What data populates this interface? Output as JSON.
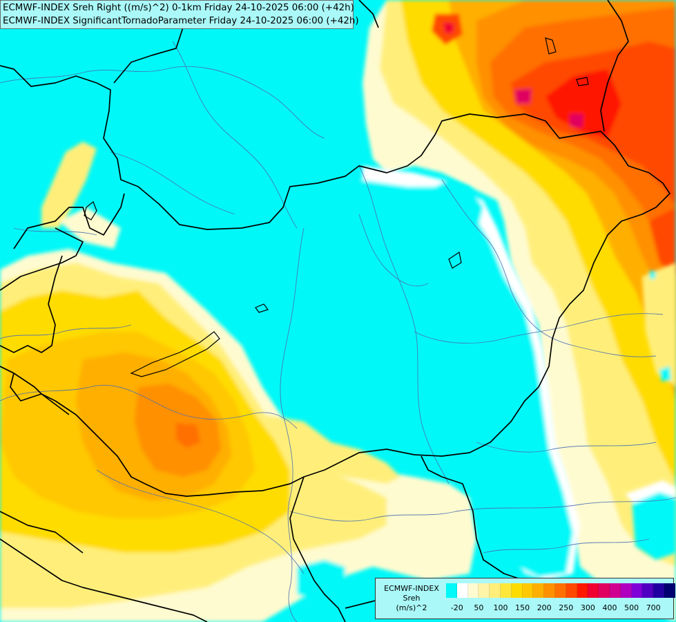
{
  "header": {
    "line1": "ECMWF-INDEX Sreh Right ((m/s)^2) 0-1km Friday 24-10-2025 06:00 (+42h)",
    "line2": "ECMWF-INDEX SignificantTornadoParameter Friday 24-10-2025 06:00 (+42h)"
  },
  "legend": {
    "title": "ECMWF-INDEX",
    "variable": "Sreh",
    "unit": "(m/s)^2",
    "colors": [
      "#00f8f8",
      "#ffffff",
      "#fffbd0",
      "#fff4a8",
      "#ffef7a",
      "#ffe83a",
      "#ffdc00",
      "#ffc800",
      "#ffaf00",
      "#ff9000",
      "#ff7000",
      "#ff4800",
      "#ff1800",
      "#f00030",
      "#e00060",
      "#d00090",
      "#b000c0",
      "#8000d8",
      "#5000c0",
      "#2000a0",
      "#000070"
    ],
    "ticks": [
      "-20",
      "50",
      "100",
      "150",
      "200",
      "250",
      "300",
      "400",
      "500",
      "700"
    ]
  },
  "map": {
    "background": "#00f8f8",
    "border_color": "#000000",
    "river_color": "#4a6fb0"
  }
}
